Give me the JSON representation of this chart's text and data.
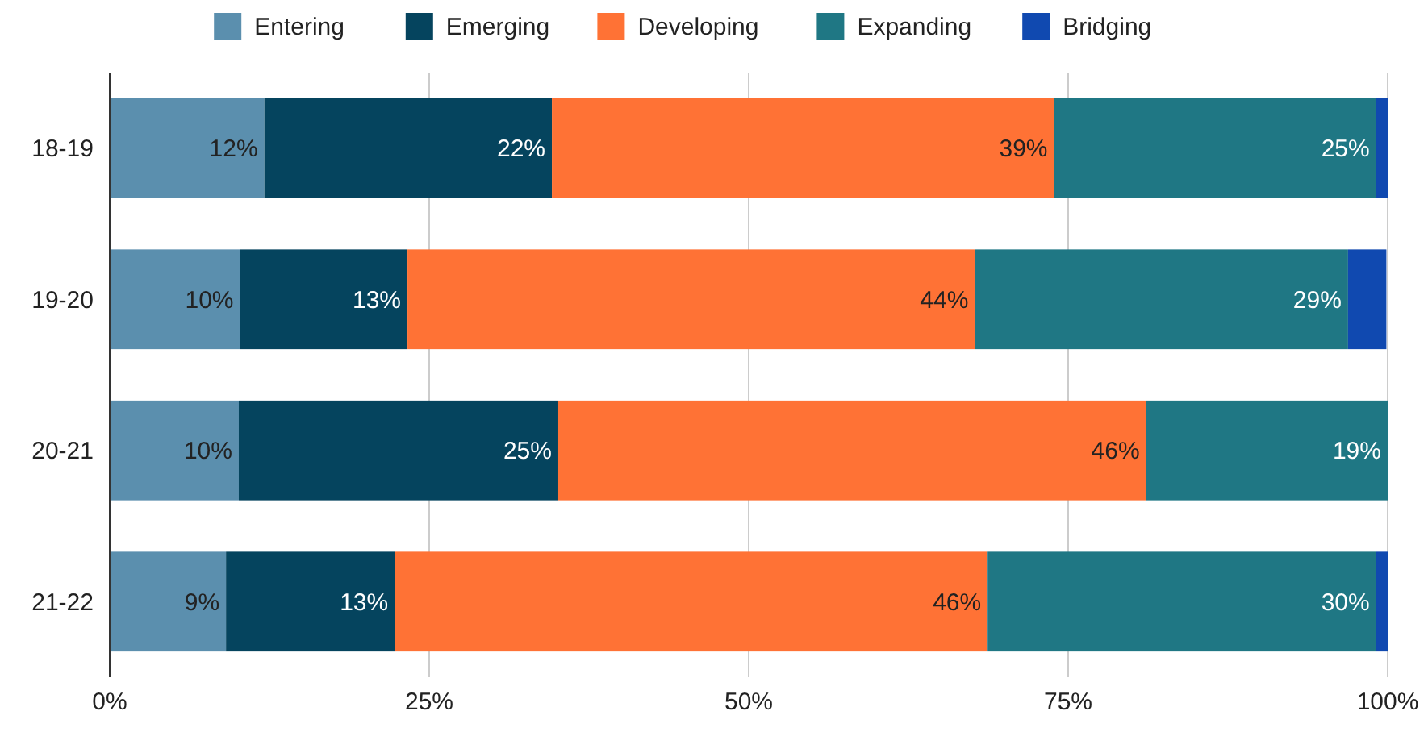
{
  "chart_data": {
    "type": "bar",
    "orientation": "horizontal",
    "stacked": true,
    "categories": [
      "18-19",
      "19-20",
      "20-21",
      "21-22"
    ],
    "series": [
      {
        "name": "Entering",
        "color": "#5b8fae",
        "values": [
          12.1,
          10.2,
          10.1,
          9.1
        ],
        "value_labels": [
          "12%",
          "10%",
          "10%",
          "9%"
        ]
      },
      {
        "name": "Emerging",
        "color": "#05445e",
        "values": [
          22.5,
          13.1,
          25.0,
          13.2
        ],
        "value_labels": [
          "22%",
          "13%",
          "25%",
          "13%"
        ]
      },
      {
        "name": "Developing",
        "color": "#ff7235",
        "values": [
          39.3,
          44.4,
          46.0,
          46.4
        ],
        "value_labels": [
          "39%",
          "44%",
          "46%",
          "46%"
        ]
      },
      {
        "name": "Expanding",
        "color": "#1f7784",
        "values": [
          25.2,
          29.2,
          18.9,
          30.4
        ],
        "value_labels": [
          "25%",
          "29%",
          "19%",
          "30%"
        ]
      },
      {
        "name": "Bridging",
        "color": "#1049b0",
        "values": [
          0.9,
          3.0,
          0,
          0.9
        ],
        "value_labels": [
          null,
          null,
          null,
          null
        ]
      }
    ],
    "xlim": [
      0,
      100
    ],
    "xticks": [
      {
        "value": 0,
        "label": "0%"
      },
      {
        "value": 25,
        "label": "25%"
      },
      {
        "value": 50,
        "label": "50%"
      },
      {
        "value": 75,
        "label": "75%"
      },
      {
        "value": 100,
        "label": "100%"
      }
    ],
    "grid": "x",
    "legend": "top"
  }
}
